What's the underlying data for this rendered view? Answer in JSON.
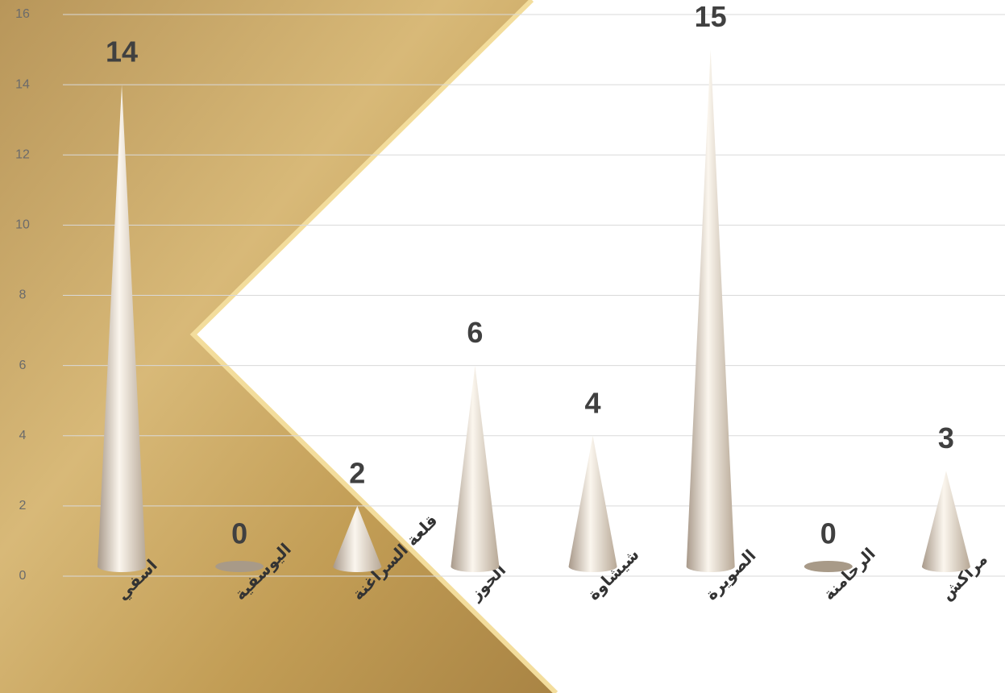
{
  "chart_data": {
    "type": "cone",
    "categories": [
      "اسفي",
      "اليوسفية",
      "قلعة السراغنة",
      "الحوز",
      "شيشاوة",
      "الصويرة",
      "الرحامنة",
      "مراكش"
    ],
    "values": [
      14,
      0,
      2,
      6,
      4,
      15,
      0,
      3
    ],
    "color": "#e8dccb",
    "ylim": [
      0,
      16
    ],
    "yticks": [
      0,
      2,
      4,
      6,
      8,
      10,
      12,
      14,
      16
    ],
    "grid": true
  }
}
